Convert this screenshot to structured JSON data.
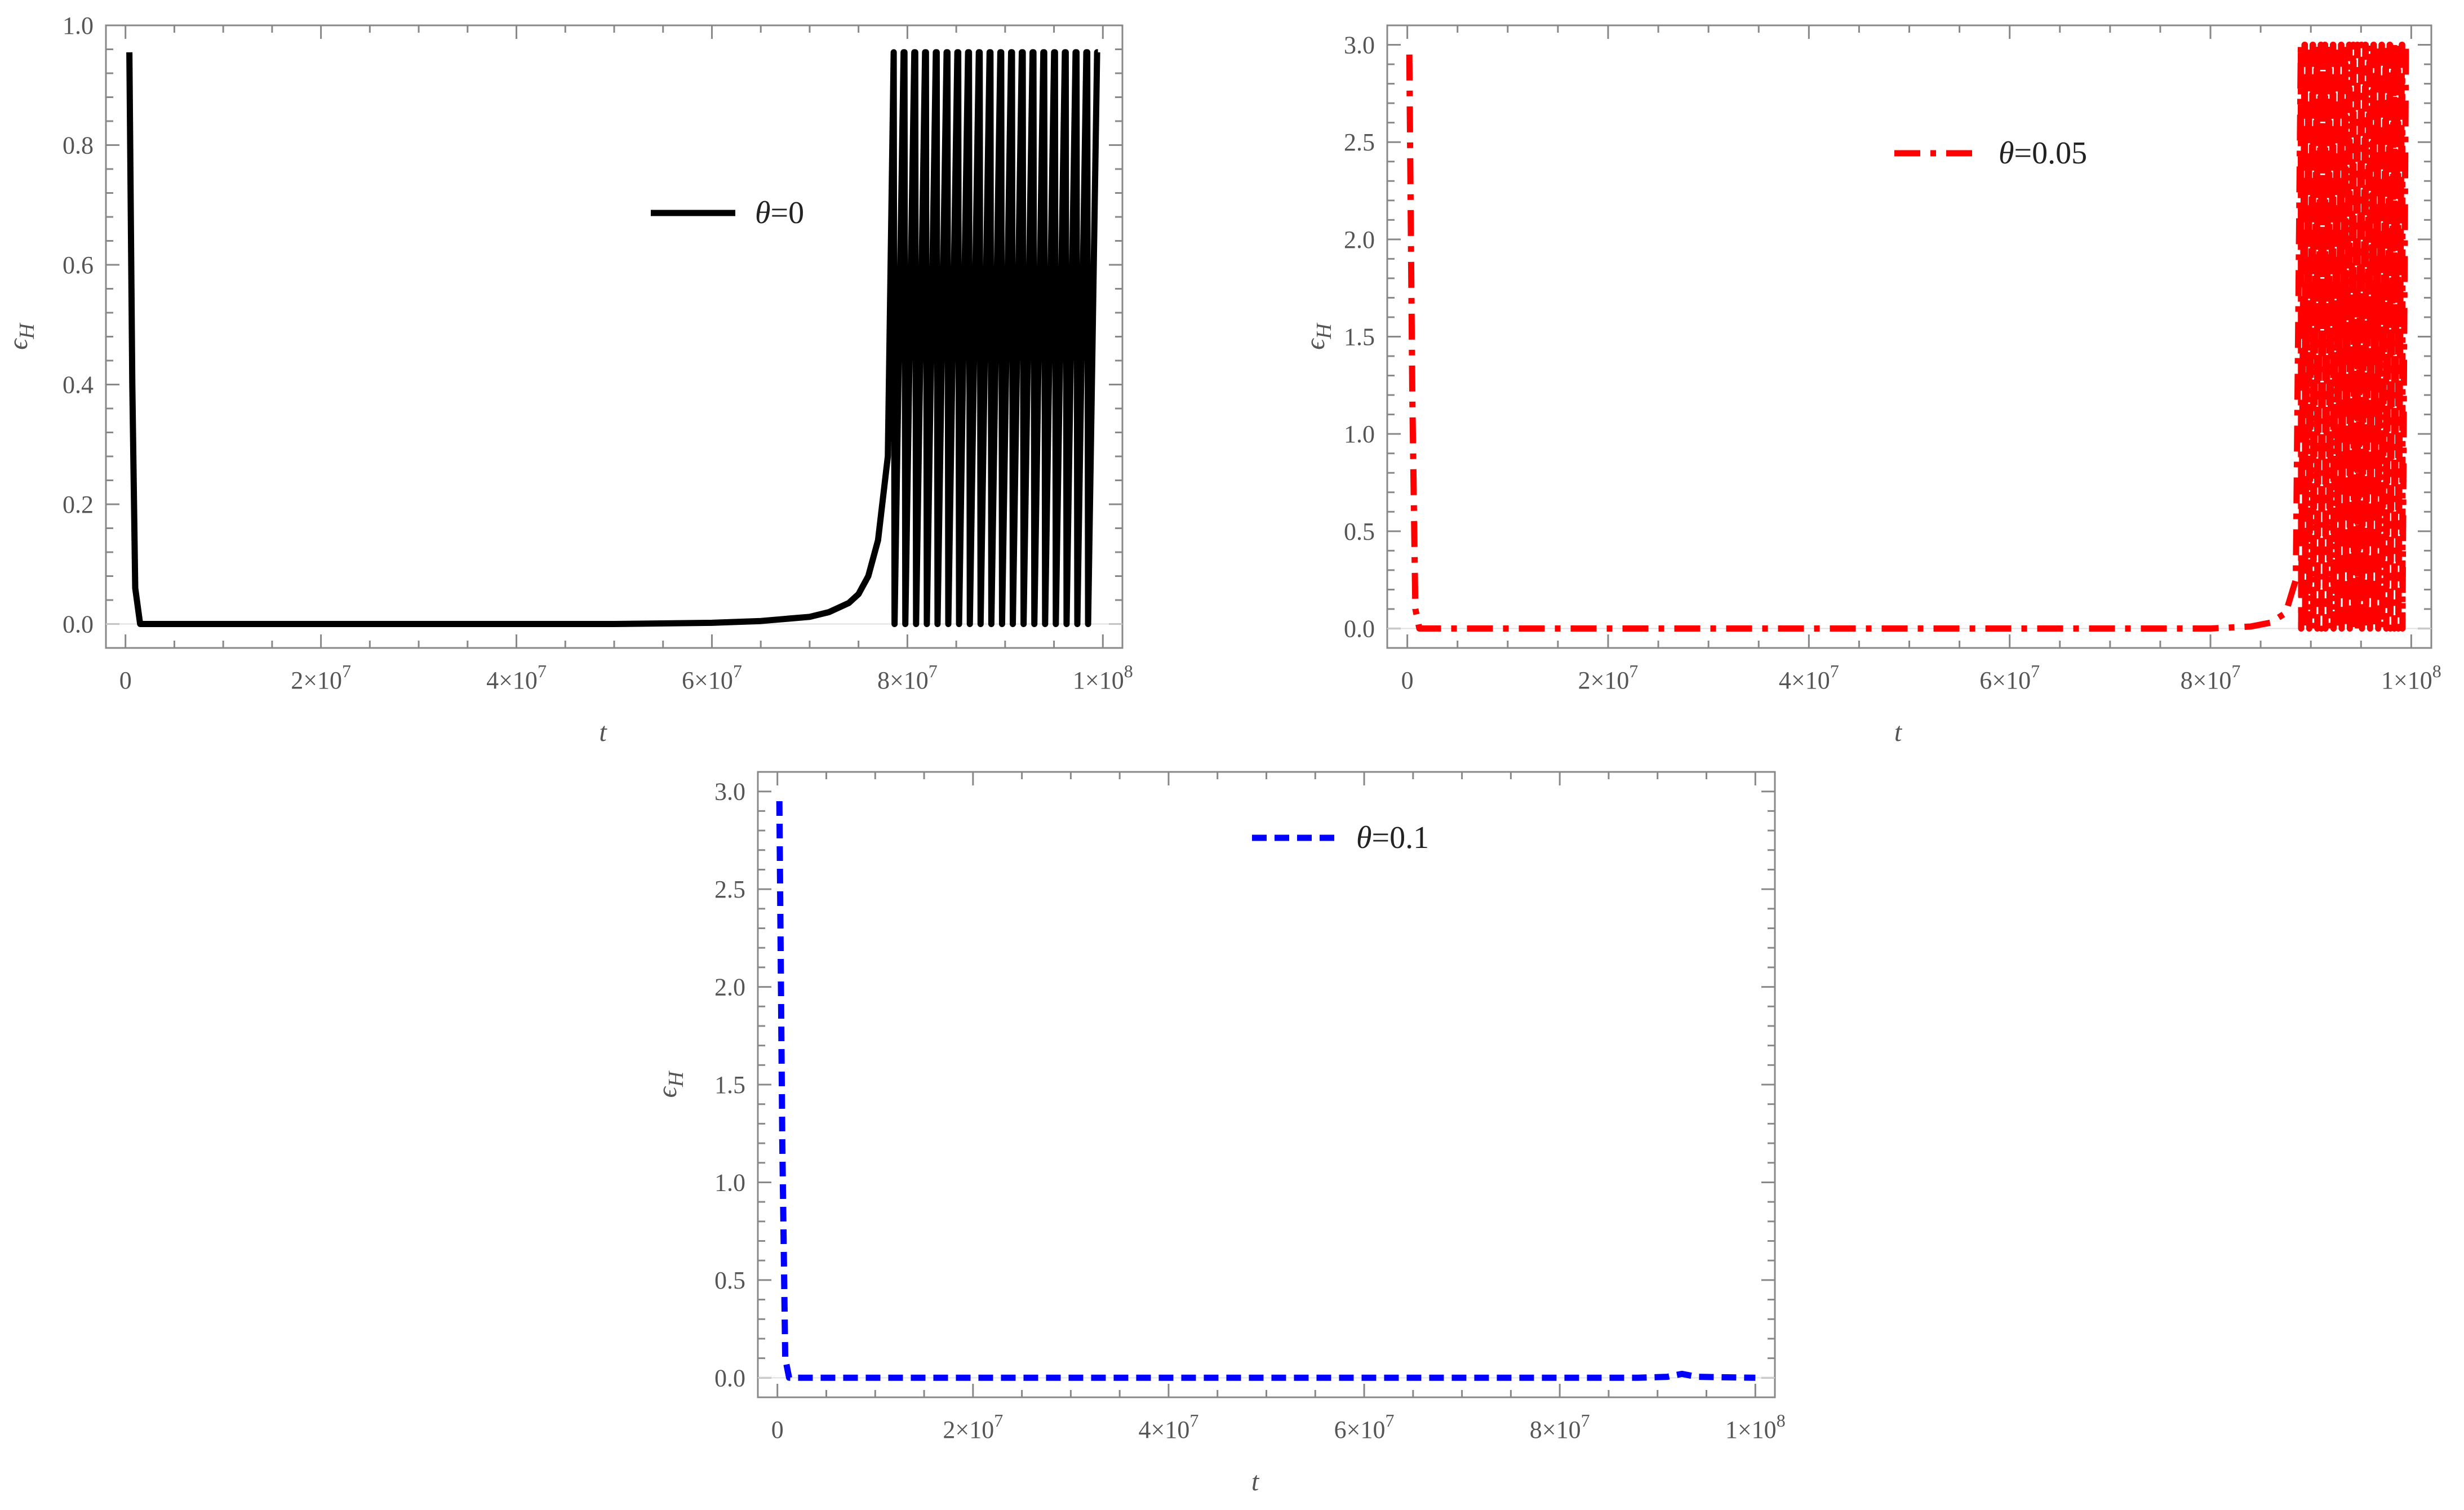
{
  "chart_data": [
    {
      "type": "line",
      "title": "",
      "xlabel": "t",
      "ylabel": "ϵ_H",
      "xlim": [
        -2000000,
        102000000
      ],
      "ylim": [
        -0.04,
        1.0
      ],
      "xticks": [
        {
          "value": 0,
          "label": "0"
        },
        {
          "value": 20000000,
          "label": "2×10",
          "exp": "7"
        },
        {
          "value": 40000000,
          "label": "4×10",
          "exp": "7"
        },
        {
          "value": 60000000,
          "label": "6×10",
          "exp": "7"
        },
        {
          "value": 80000000,
          "label": "8×10",
          "exp": "7"
        },
        {
          "value": 100000000,
          "label": "1×10",
          "exp": "8"
        }
      ],
      "yticks": [
        {
          "value": 0.0,
          "label": "0.0"
        },
        {
          "value": 0.2,
          "label": "0.2"
        },
        {
          "value": 0.4,
          "label": "0.4"
        },
        {
          "value": 0.6,
          "label": "0.6"
        },
        {
          "value": 0.8,
          "label": "0.8"
        },
        {
          "value": 1.0,
          "label": "1.0"
        }
      ],
      "grid": false,
      "legend_position": "upper-middle",
      "series": [
        {
          "name": "θ=0",
          "color": "#000000",
          "style": "solid",
          "x": [
            400000,
            700000,
            1000000,
            1500000,
            3000000,
            10000000,
            20000000,
            30000000,
            40000000,
            50000000,
            60000000,
            65000000,
            70000000,
            72000000,
            74000000,
            75000000,
            76000000,
            77000000,
            78000000,
            78600000
          ],
          "y": [
            0.955,
            0.4,
            0.06,
            0.0,
            0.0,
            0.0,
            0.0,
            0.0,
            0.0,
            0.0,
            0.002,
            0.005,
            0.012,
            0.02,
            0.035,
            0.05,
            0.08,
            0.14,
            0.28,
            0.955
          ],
          "oscillation": {
            "x_start": 78600000,
            "x_end": 99500000,
            "cycles": 19,
            "min": 0.0,
            "max": 0.955
          }
        }
      ]
    },
    {
      "type": "line",
      "title": "",
      "xlabel": "t",
      "ylabel": "ϵ_H",
      "xlim": [
        -2000000,
        102000000
      ],
      "ylim": [
        -0.1,
        3.1
      ],
      "xticks": [
        {
          "value": 0,
          "label": "0"
        },
        {
          "value": 20000000,
          "label": "2×10",
          "exp": "7"
        },
        {
          "value": 40000000,
          "label": "4×10",
          "exp": "7"
        },
        {
          "value": 60000000,
          "label": "6×10",
          "exp": "7"
        },
        {
          "value": 80000000,
          "label": "8×10",
          "exp": "7"
        },
        {
          "value": 100000000,
          "label": "1×10",
          "exp": "8"
        }
      ],
      "yticks": [
        {
          "value": 0.0,
          "label": "0.0"
        },
        {
          "value": 0.5,
          "label": "0.5"
        },
        {
          "value": 1.0,
          "label": "1.0"
        },
        {
          "value": 1.5,
          "label": "1.5"
        },
        {
          "value": 2.0,
          "label": "2.0"
        },
        {
          "value": 2.5,
          "label": "2.5"
        },
        {
          "value": 3.0,
          "label": "3.0"
        }
      ],
      "grid": false,
      "legend_position": "upper-right",
      "series": [
        {
          "name": "θ=0.05",
          "color": "#ff0000",
          "style": "dash-dot",
          "x": [
            200000,
            500000,
            800000,
            1200000,
            3000000,
            10000000,
            20000000,
            40000000,
            60000000,
            80000000,
            84000000,
            86000000,
            87500000,
            88500000,
            89000000
          ],
          "y": [
            2.95,
            1.2,
            0.1,
            0.0,
            0.0,
            0.0,
            0.0,
            0.0,
            0.0,
            0.0,
            0.01,
            0.03,
            0.08,
            0.25,
            3.0
          ],
          "oscillation": {
            "x_start": 89000000,
            "x_end": 99500000,
            "cycles": 26,
            "min": 0.0,
            "max": 3.0
          }
        }
      ]
    },
    {
      "type": "line",
      "title": "",
      "xlabel": "t",
      "ylabel": "ϵ_H",
      "xlim": [
        -2000000,
        102000000
      ],
      "ylim": [
        -0.1,
        3.1
      ],
      "xticks": [
        {
          "value": 0,
          "label": "0"
        },
        {
          "value": 20000000,
          "label": "2×10",
          "exp": "7"
        },
        {
          "value": 40000000,
          "label": "4×10",
          "exp": "7"
        },
        {
          "value": 60000000,
          "label": "6×10",
          "exp": "7"
        },
        {
          "value": 80000000,
          "label": "8×10",
          "exp": "7"
        },
        {
          "value": 100000000,
          "label": "1×10",
          "exp": "8"
        }
      ],
      "yticks": [
        {
          "value": 0.0,
          "label": "0.0"
        },
        {
          "value": 0.5,
          "label": "0.5"
        },
        {
          "value": 1.0,
          "label": "1.0"
        },
        {
          "value": 1.5,
          "label": "1.5"
        },
        {
          "value": 2.0,
          "label": "2.0"
        },
        {
          "value": 2.5,
          "label": "2.5"
        },
        {
          "value": 3.0,
          "label": "3.0"
        }
      ],
      "grid": false,
      "legend_position": "upper-middle",
      "series": [
        {
          "name": "θ=0.1",
          "color": "#0000ff",
          "style": "dashed",
          "x": [
            200000,
            500000,
            800000,
            1200000,
            3000000,
            10000000,
            30000000,
            50000000,
            70000000,
            88000000,
            91000000,
            92500000,
            94000000,
            100000000
          ],
          "y": [
            2.95,
            1.2,
            0.1,
            0.0,
            0.0,
            0.0,
            0.0,
            0.0,
            0.0,
            0.0,
            0.005,
            0.02,
            0.005,
            0.0
          ]
        }
      ]
    }
  ]
}
